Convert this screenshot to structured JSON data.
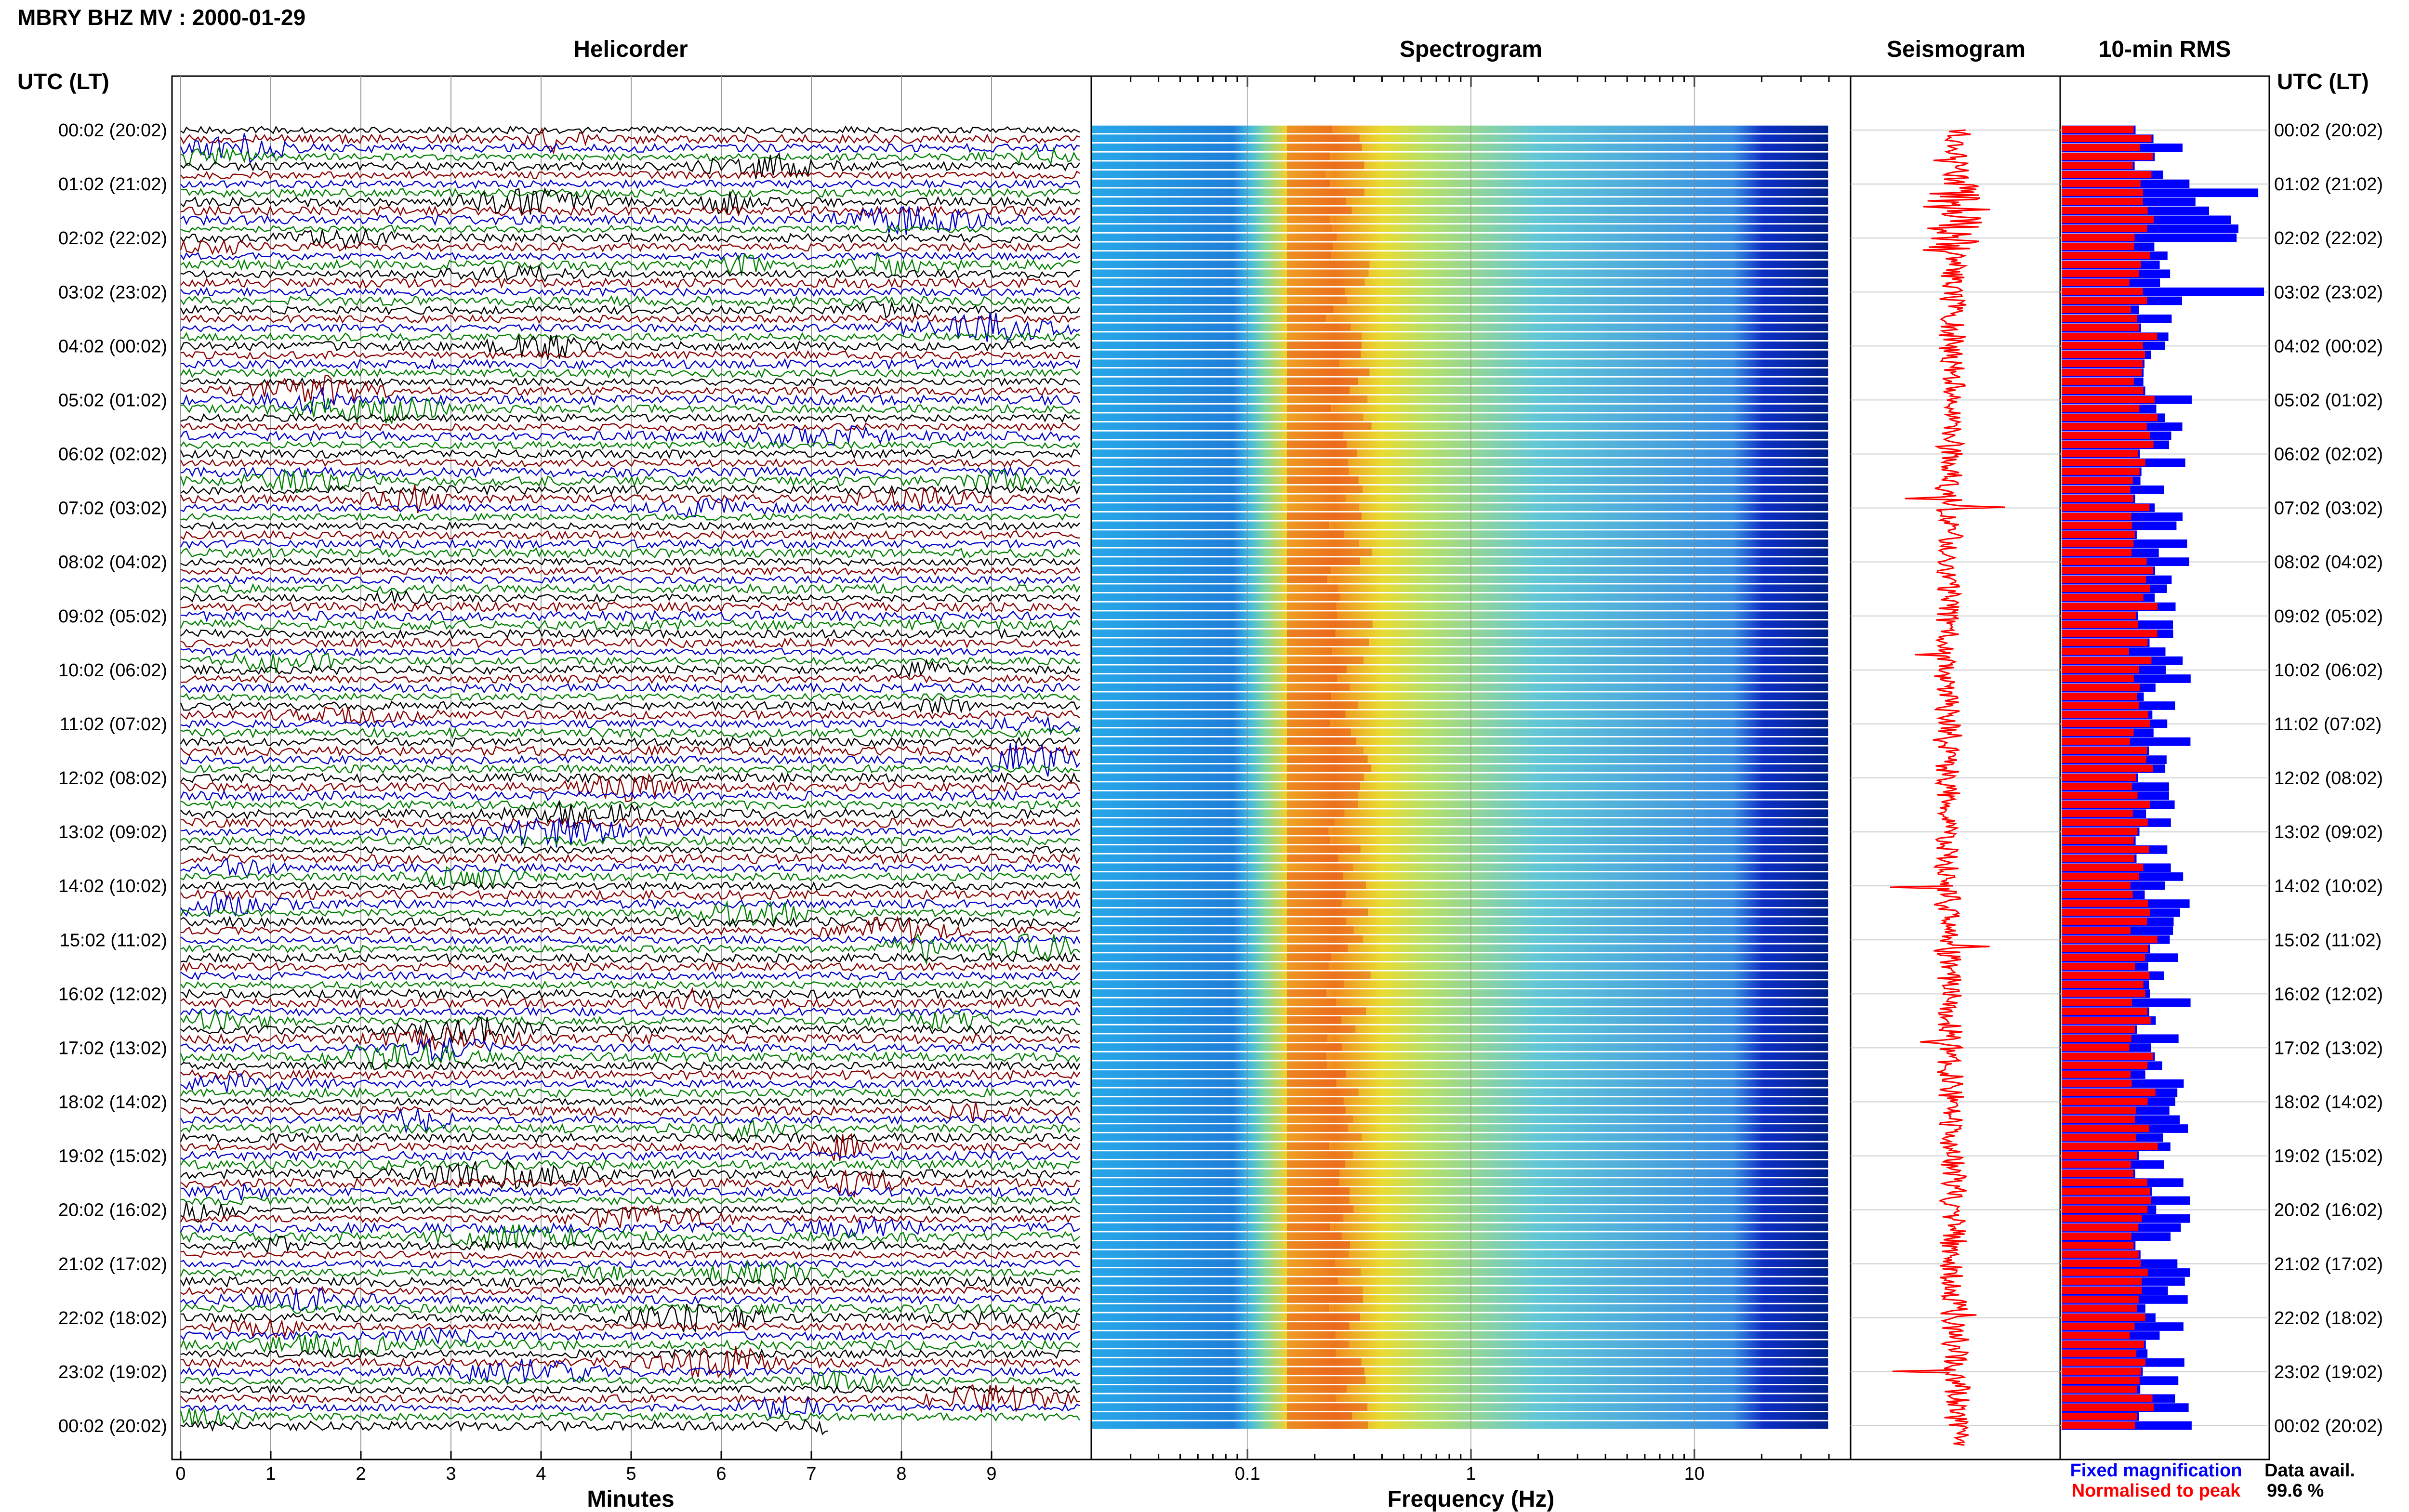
{
  "figure": {
    "title": "MBRY BHZ MV : 2000-01-29",
    "time_axis_label": "UTC (LT)",
    "data_avail_label": "Data avail.",
    "data_avail_value": "99.6 %",
    "legend": {
      "fixed": "Fixed magnification",
      "normalised": "Normalised to peak"
    },
    "colors": {
      "fixed": "#0000ff",
      "normalised": "#ff0000",
      "trace_cycle": [
        "#000000",
        "#8b0000",
        "#0000cd",
        "#008000"
      ]
    }
  },
  "chart_data": [
    {
      "type": "line",
      "title": "Helicorder",
      "xlabel": "Minutes",
      "ylabel": "UTC (LT)",
      "xlim": [
        0,
        10
      ],
      "x_ticks": [
        "0",
        "1",
        "2",
        "3",
        "4",
        "5",
        "6",
        "7",
        "8",
        "9"
      ],
      "y_ticks": [
        "00:02 (20:02)",
        "01:02 (21:02)",
        "02:02 (22:02)",
        "03:02 (23:02)",
        "04:02 (00:02)",
        "05:02 (01:02)",
        "06:02 (02:02)",
        "07:02 (03:02)",
        "08:02 (04:02)",
        "09:02 (05:02)",
        "10:02 (06:02)",
        "11:02 (07:02)",
        "12:02 (08:02)",
        "13:02 (09:02)",
        "14:02 (10:02)",
        "15:02 (11:02)",
        "16:02 (12:02)",
        "17:02 (13:02)",
        "18:02 (14:02)",
        "19:02 (15:02)",
        "20:02 (16:02)",
        "21:02 (17:02)",
        "22:02 (18:02)",
        "23:02 (19:02)",
        "00:02 (20:02)"
      ],
      "line_interval_minutes": 10,
      "lines": 145,
      "colors_cycle": [
        "black",
        "darkred",
        "blue",
        "green"
      ]
    },
    {
      "type": "heatmap",
      "title": "Spectrogram",
      "xlabel": "Frequency (Hz)",
      "xscale": "log",
      "xlim": [
        0.02,
        50
      ],
      "x_ticks": [
        "0.1",
        "1",
        "10"
      ],
      "rows": 145,
      "dominant_band_hz": [
        0.15,
        0.4
      ],
      "colormap": "jet"
    },
    {
      "type": "line",
      "title": "Seismogram",
      "orientation": "vertical",
      "series": [
        {
          "name": "Normalised to peak",
          "color": "#ff0000"
        }
      ]
    },
    {
      "type": "bar",
      "title": "10-min RMS",
      "orientation": "horizontal",
      "rows": 145,
      "series": [
        {
          "name": "Fixed magnification",
          "color": "#0000ff"
        },
        {
          "name": "Normalised to peak",
          "color": "#ff0000"
        }
      ]
    }
  ]
}
